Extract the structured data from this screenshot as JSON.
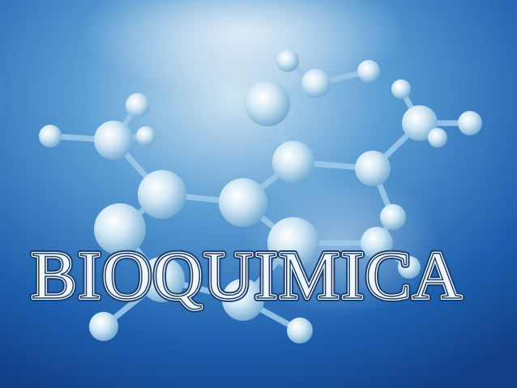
{
  "title": "BIOQUIMICA"
}
